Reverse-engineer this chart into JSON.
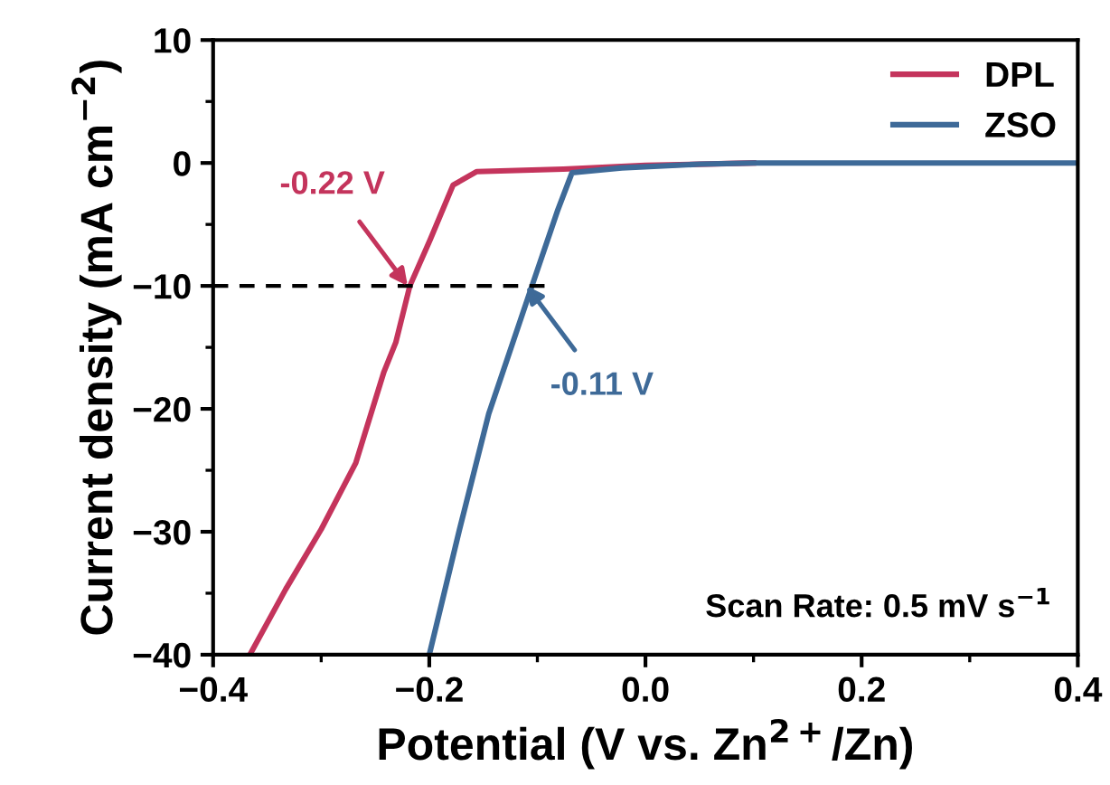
{
  "chart_data": {
    "type": "line",
    "xlabel": "Potential (V vs. Zn$^{2+}$/Zn)",
    "ylabel": "Current density (mA cm$^{−2}$)",
    "xlim": [
      -0.4,
      0.4
    ],
    "ylim": [
      -40,
      10
    ],
    "xticks": [
      {
        "value": -0.4,
        "label": "−0.4"
      },
      {
        "value": -0.2,
        "label": "−0.2"
      },
      {
        "value": 0.0,
        "label": "0.0"
      },
      {
        "value": 0.2,
        "label": "0.2"
      },
      {
        "value": 0.4,
        "label": "0.4"
      }
    ],
    "yticks": [
      {
        "value": -40,
        "label": "−40"
      },
      {
        "value": -30,
        "label": "−30"
      },
      {
        "value": -20,
        "label": "−20"
      },
      {
        "value": -10,
        "label": "−10"
      },
      0,
      10
    ],
    "series": [
      {
        "name": "DPL",
        "color": "#c4345c",
        "x": [
          -0.366,
          -0.333,
          -0.3,
          -0.268,
          -0.242,
          -0.231,
          -0.218,
          -0.199,
          -0.178,
          -0.156,
          -0.076,
          0.0,
          0.1
        ],
        "values": [
          -40,
          -34.7,
          -29.8,
          -24.4,
          -17.0,
          -14.6,
          -10,
          -6.2,
          -1.8,
          -0.7,
          -0.5,
          -0.2,
          0
        ]
      },
      {
        "name": "ZSO",
        "color": "#3e6a98",
        "x": [
          -0.2,
          -0.172,
          -0.145,
          -0.105,
          -0.081,
          -0.068,
          -0.022,
          0.05,
          0.1,
          0.2,
          0.4
        ],
        "values": [
          -40,
          -29.8,
          -20.4,
          -10,
          -3.8,
          -0.8,
          -0.4,
          -0.1,
          0,
          0,
          0
        ]
      },
      {
        "type": "line",
        "color": "#000000",
        "line_style": "dashed",
        "x": [
          -0.4,
          -0.09
        ],
        "values": [
          -10,
          -10
        ]
      }
    ],
    "annotations": [
      {
        "text": "-0.22 V",
        "x": -0.22,
        "y": -10
      },
      {
        "text": "-0.11 V",
        "x": -0.11,
        "y": -10
      },
      "Scan Rate: 0.5 mV s$^{−1}$"
    ],
    "legend": "top right",
    "grid": false,
    "marker": "none",
    "line_style": "solid"
  }
}
